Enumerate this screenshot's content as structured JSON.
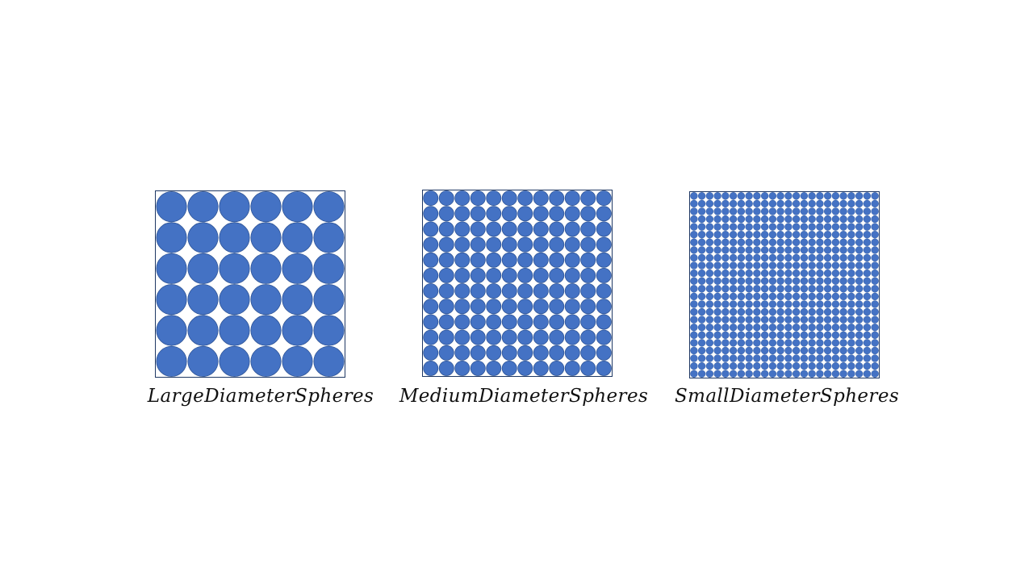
{
  "colors": {
    "sphere_fill": "#4472c4",
    "sphere_stroke": "#2f5597",
    "box_stroke": "#1f3864",
    "background": "#ffffff"
  },
  "panels": [
    {
      "id": "large",
      "caption": "LargeDiameterSpheres",
      "grid_columns": 6,
      "grid_rows": 6
    },
    {
      "id": "medium",
      "caption": "MediumDiameterSpheres",
      "grid_columns": 12,
      "grid_rows": 12
    },
    {
      "id": "small",
      "caption": "SmallDiameterSpheres",
      "grid_columns": 24,
      "grid_rows": 24
    }
  ]
}
